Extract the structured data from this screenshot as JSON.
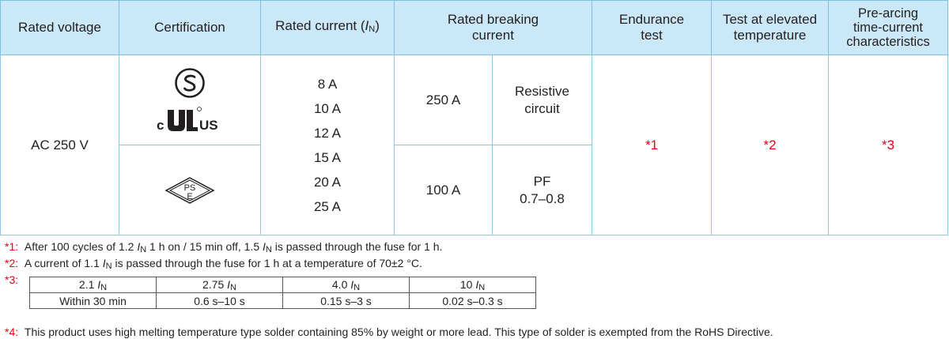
{
  "header": {
    "rated_voltage": "Rated voltage",
    "certification": "Certification",
    "rated_current": "Rated current (",
    "rated_current_sym": "I",
    "rated_current_sub": "N",
    "rated_current_close": ")",
    "breaking_line1": "Rated breaking",
    "breaking_line2": "current",
    "endurance_line1": "Endurance",
    "endurance_line2": "test",
    "elevated_line1": "Test at elevated",
    "elevated_line2": "temperature",
    "prearc_line1": "Pre-arcing",
    "prearc_line2": "time-current",
    "prearc_line3": "characteristics"
  },
  "body": {
    "voltage": "AC 250 V",
    "cert_ul_left": "c",
    "cert_ul_right": "US",
    "cert_pse_top": "PS",
    "cert_pse_bottom": "E",
    "currents": [
      "8 A",
      "10 A",
      "12 A",
      "15 A",
      "20 A",
      "25 A"
    ],
    "breaking_1_value": "250 A",
    "breaking_1_cond_line1": "Resistive",
    "breaking_1_cond_line2": "circuit",
    "breaking_2_value": "100 A",
    "breaking_2_cond_line1": "PF",
    "breaking_2_cond_line2": "0.7–0.8",
    "endurance_ref": "*1",
    "elevated_ref": "*2",
    "prearc_ref": "*3"
  },
  "footnotes": {
    "n1_mark": "*1:",
    "n1_a": "After 100 cycles of 1.2 ",
    "n1_b": " 1 h on / 15 min off, 1.5 ",
    "n1_c": " is passed through the fuse for 1 h.",
    "n2_mark": "*2:",
    "n2_a": "A current of 1.1 ",
    "n2_b": " is passed through the fuse for 1 h at a temperature of 70±2 °C.",
    "n3_mark": "*3:",
    "n4_mark": "*4:",
    "n4_text": "This product uses high melting temperature type solder containing 85% by weight or more lead. This type of solder is exempted from the RoHS Directive.",
    "sym_i": "I",
    "sym_n": "N"
  },
  "prearc_table": {
    "multipliers": [
      "2.1 ",
      "2.75 ",
      "4.0 ",
      "10 "
    ],
    "times": [
      "Within 30 min",
      "0.6 s–10 s",
      "0.15 s–3 s",
      "0.02 s–0.3 s"
    ]
  },
  "colors": {
    "header_bg": "#cbe8f8",
    "grid": "#8ec8e8",
    "accent_red": "#e60012"
  }
}
